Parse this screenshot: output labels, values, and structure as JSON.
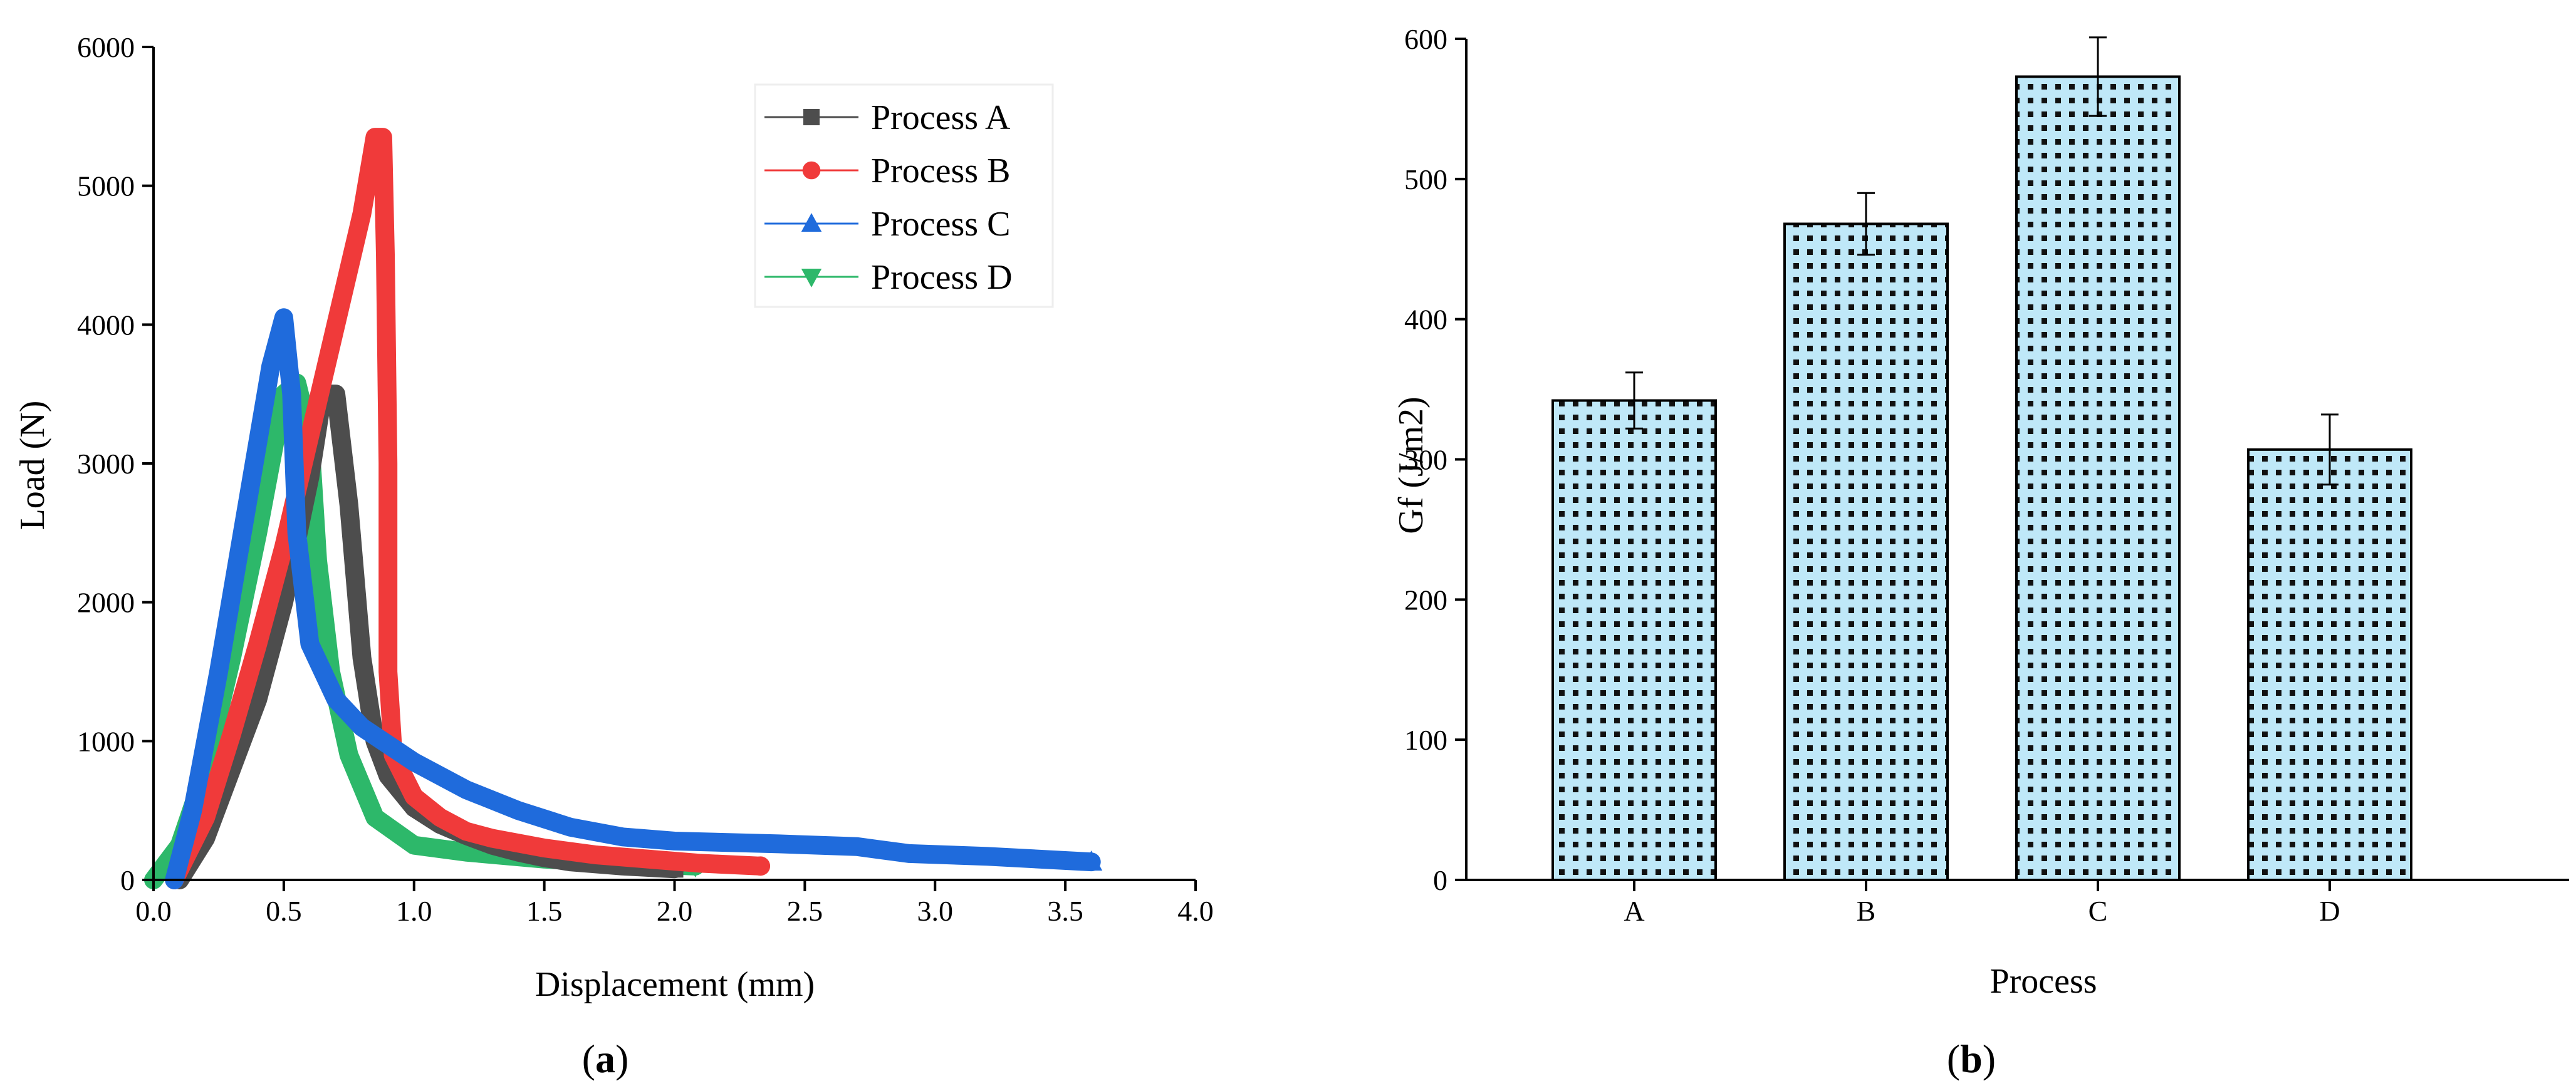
{
  "chart_data": [
    {
      "panel_label": "a",
      "type": "line",
      "xlabel": "Displacement (mm)",
      "ylabel": "Load (N)",
      "xlim": [
        0,
        4.0
      ],
      "ylim": [
        0,
        6000
      ],
      "xticks": [
        "0.0",
        "0.5",
        "1.0",
        "1.5",
        "2.0",
        "2.5",
        "3.0",
        "3.5",
        "4.0"
      ],
      "yticks": [
        "0",
        "1000",
        "2000",
        "3000",
        "4000",
        "5000",
        "6000"
      ],
      "legend_position": "top-right",
      "series": [
        {
          "name": "Process A",
          "marker": "square",
          "color": "#4d4d4d",
          "x": [
            0.1,
            0.2,
            0.3,
            0.4,
            0.5,
            0.6,
            0.65,
            0.7,
            0.75,
            0.8,
            0.85,
            0.9,
            1.0,
            1.1,
            1.2,
            1.3,
            1.4,
            1.5,
            1.6,
            1.8,
            2.0
          ],
          "y": [
            0,
            300,
            800,
            1300,
            2000,
            2900,
            3500,
            3500,
            2700,
            1600,
            1000,
            750,
            520,
            400,
            320,
            250,
            200,
            160,
            130,
            100,
            80
          ]
        },
        {
          "name": "Process B",
          "marker": "circle",
          "color": "#f03a3a",
          "x": [
            0.08,
            0.2,
            0.3,
            0.4,
            0.5,
            0.6,
            0.7,
            0.8,
            0.85,
            0.88,
            0.89,
            0.9,
            0.9,
            0.92,
            1.0,
            1.1,
            1.2,
            1.3,
            1.5,
            1.7,
            1.9,
            2.1,
            2.33
          ],
          "y": [
            0,
            450,
            1050,
            1700,
            2400,
            3200,
            4000,
            4800,
            5350,
            5350,
            4500,
            3000,
            1500,
            900,
            600,
            450,
            350,
            300,
            230,
            180,
            150,
            120,
            100
          ]
        },
        {
          "name": "Process C",
          "marker": "triangle-up",
          "color": "#1f6bdc",
          "x": [
            0.08,
            0.15,
            0.25,
            0.35,
            0.45,
            0.5,
            0.53,
            0.55,
            0.6,
            0.7,
            0.8,
            1.0,
            1.2,
            1.4,
            1.6,
            1.8,
            2.0,
            2.4,
            2.7,
            2.9,
            3.2,
            3.6
          ],
          "y": [
            0,
            500,
            1500,
            2600,
            3700,
            4050,
            3500,
            2500,
            1700,
            1300,
            1100,
            850,
            650,
            500,
            380,
            310,
            280,
            260,
            240,
            190,
            170,
            130
          ]
        },
        {
          "name": "Process D",
          "marker": "triangle-down",
          "color": "#2db86a",
          "x": [
            0.0,
            0.1,
            0.2,
            0.3,
            0.4,
            0.5,
            0.55,
            0.6,
            0.63,
            0.68,
            0.75,
            0.85,
            1.0,
            1.2,
            1.5,
            1.8,
            2.08
          ],
          "y": [
            0,
            250,
            800,
            1600,
            2500,
            3500,
            3580,
            3200,
            2300,
            1500,
            900,
            450,
            250,
            200,
            150,
            120,
            100
          ]
        }
      ]
    },
    {
      "panel_label": "b",
      "type": "bar",
      "xlabel": "Process",
      "ylabel": "Gf (J/m2)",
      "ylim": [
        0,
        600
      ],
      "yticks": [
        "0",
        "100",
        "200",
        "300",
        "400",
        "500",
        "600"
      ],
      "categories": [
        "A",
        "B",
        "C",
        "D"
      ],
      "values": [
        342,
        468,
        573,
        307
      ],
      "errors": [
        20,
        22,
        28,
        25
      ],
      "bar_color": "#bfe8f8",
      "pattern": "dots"
    }
  ]
}
